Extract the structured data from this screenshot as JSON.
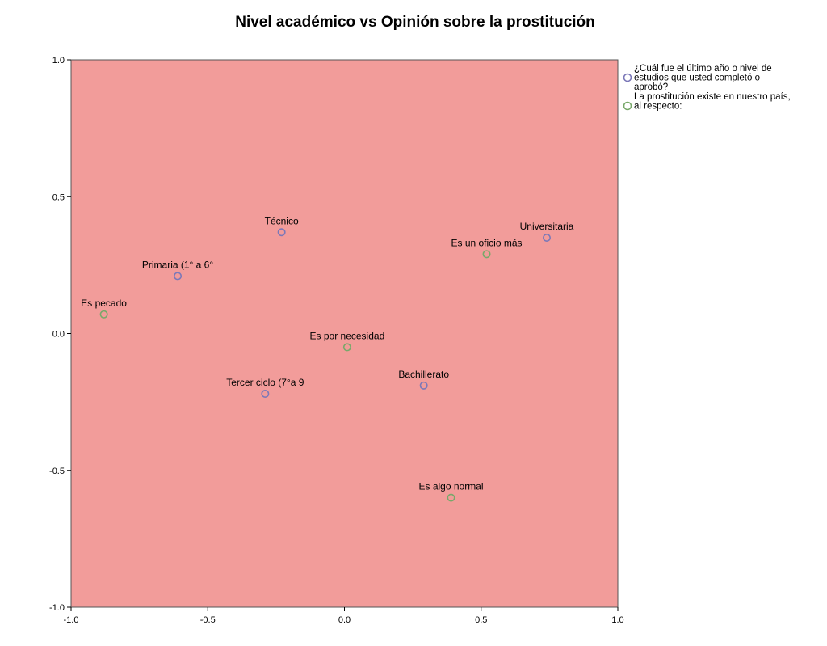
{
  "chart_data": {
    "type": "scatter",
    "title": "Nivel académico vs Opinión sobre la prostitución",
    "xlim": [
      -1.0,
      1.0
    ],
    "ylim": [
      -1.0,
      1.0
    ],
    "x_ticks": [
      "-1.0",
      "-0.5",
      "0.0",
      "0.5",
      "1.0"
    ],
    "y_ticks": [
      "-1.0",
      "-0.5",
      "0.0",
      "0.5",
      "1.0"
    ],
    "grid": false,
    "plot_background": "#f29c9a",
    "legend_position": "right",
    "series": [
      {
        "name": "¿Cuál fue el último año o nivel de estudios que usted completó o aprobó?",
        "legend_lines": [
          "¿Cuál fue el último año o nivel de",
          "estudios que usted completó o",
          "aprobó?"
        ],
        "color": "#7b78b8",
        "points": [
          {
            "label": "Técnico",
            "x": -0.23,
            "y": 0.37
          },
          {
            "label": "Primaria (1° a 6°",
            "x": -0.61,
            "y": 0.21
          },
          {
            "label": "Universitaria",
            "x": 0.74,
            "y": 0.35
          },
          {
            "label": "Tercer ciclo (7°a 9",
            "x": -0.29,
            "y": -0.22
          },
          {
            "label": "Bachillerato",
            "x": 0.29,
            "y": -0.19
          }
        ]
      },
      {
        "name": "La prostitución existe en nuestro país, al respecto:",
        "legend_lines": [
          "La prostitución existe en nuestro país,",
          "al respecto:"
        ],
        "color": "#78a86a",
        "points": [
          {
            "label": "Es un oficio más",
            "x": 0.52,
            "y": 0.29
          },
          {
            "label": "Es pecado",
            "x": -0.88,
            "y": 0.07
          },
          {
            "label": "Es por necesidad",
            "x": 0.01,
            "y": -0.05
          },
          {
            "label": "Es algo normal",
            "x": 0.39,
            "y": -0.6
          }
        ]
      }
    ]
  }
}
